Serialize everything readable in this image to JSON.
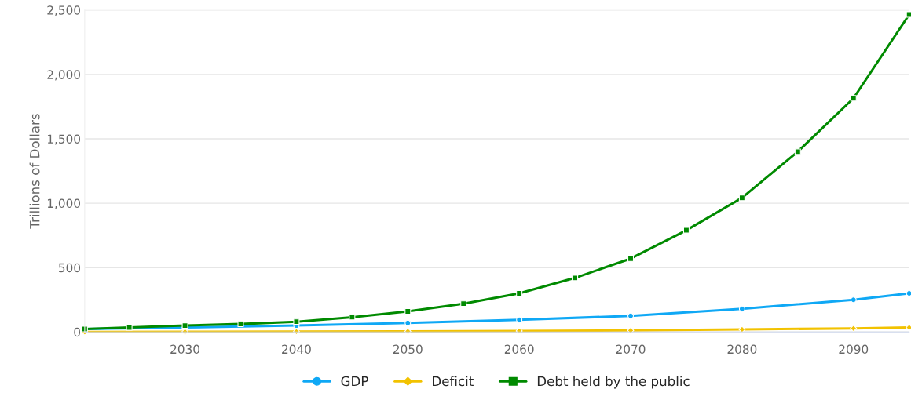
{
  "chart_data": {
    "type": "line",
    "ylabel": "Trillions of Dollars",
    "xlim": [
      2021,
      2095
    ],
    "xticks": [
      2030,
      2040,
      2050,
      2060,
      2070,
      2080,
      2090
    ],
    "ylim": [
      0,
      2500
    ],
    "yticks": [
      {
        "value": 0,
        "label": "0"
      },
      {
        "value": 500,
        "label": "500"
      },
      {
        "value": 1000,
        "label": "1,000"
      },
      {
        "value": 1500,
        "label": "1,500"
      },
      {
        "value": 2000,
        "label": "2,000"
      },
      {
        "value": 2500,
        "label": "2,500"
      }
    ],
    "grid": "y",
    "legend": "bottom",
    "line_style": "solid",
    "series": [
      {
        "name": "GDP",
        "color": "#0fa8f5",
        "marker": "circle",
        "x": [
          2021,
          2030,
          2040,
          2050,
          2060,
          2070,
          2080,
          2090,
          2095
        ],
        "values": [
          23,
          35,
          50,
          70,
          95,
          125,
          180,
          250,
          300
        ]
      },
      {
        "name": "Deficit",
        "color": "#f2c200",
        "marker": "diamond",
        "x": [
          2021,
          2030,
          2040,
          2050,
          2060,
          2070,
          2080,
          2090,
          2095
        ],
        "values": [
          0,
          2,
          3,
          5,
          8,
          12,
          20,
          28,
          35
        ]
      },
      {
        "name": "Debt held by the public",
        "color": "#008a00",
        "marker": "square",
        "x": [
          2021,
          2025,
          2030,
          2035,
          2040,
          2045,
          2050,
          2055,
          2060,
          2065,
          2070,
          2075,
          2080,
          2085,
          2090,
          2095
        ],
        "values": [
          23,
          35,
          50,
          62,
          80,
          115,
          160,
          220,
          300,
          420,
          570,
          790,
          1042,
          1400,
          1815,
          2465
        ]
      }
    ]
  }
}
